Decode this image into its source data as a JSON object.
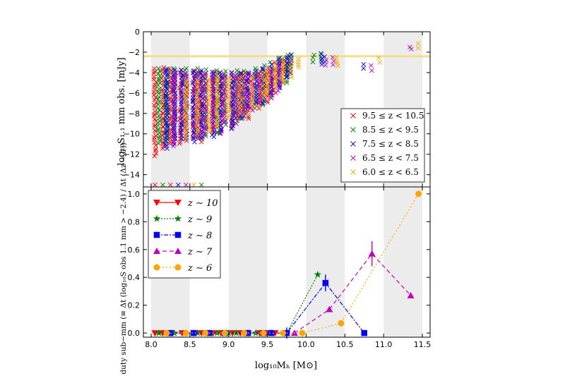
{
  "axes": {
    "xlabel": "log₁₀Mₕ [M⊙]",
    "top_ylabel": "log₁₀S₁.₁ mm obs. [mJy]",
    "bottom_ylabel": "f duty sub−mm (≡ Δt (log₁₀S obs 1.1 mm > −2.4) / Δt (Δz ~ 1))",
    "xticks": [
      "8.0",
      "8.5",
      "9.0",
      "9.5",
      "10.0",
      "10.5",
      "11.0",
      "11.5"
    ],
    "top_yticks": [
      "0",
      "−2",
      "−4",
      "−6",
      "−8",
      "−10",
      "−12",
      "−14"
    ],
    "bottom_yticks": [
      "0.0",
      "0.2",
      "0.4",
      "0.6",
      "0.8",
      "1.0"
    ]
  },
  "colors": {
    "z10": "#ff0000",
    "z9": "#008000",
    "z8": "#0000ff",
    "z7": "#bf00bf",
    "z6": "#ffa500",
    "threshold": "#f5e08a",
    "band": "#ececec"
  },
  "top_legend": [
    {
      "key": "z10",
      "label": "9.5 ≤ z < 10.5"
    },
    {
      "key": "z9",
      "label": "8.5 ≤ z < 9.5"
    },
    {
      "key": "z8",
      "label": "7.5 ≤ z < 8.5"
    },
    {
      "key": "z7",
      "label": "6.5 ≤ z < 7.5"
    },
    {
      "key": "z6",
      "label": "6.0 ≤ z < 6.5"
    }
  ],
  "bottom_legend": [
    {
      "key": "z10",
      "label": "z ∼ 10",
      "marker": "tri-down",
      "dash": ""
    },
    {
      "key": "z9",
      "label": "z ∼ 9",
      "marker": "star",
      "dash": "2,2"
    },
    {
      "key": "z8",
      "label": "z ∼ 8",
      "marker": "square",
      "dash": "6,2,2,2"
    },
    {
      "key": "z7",
      "label": "z ∼ 7",
      "marker": "tri-up",
      "dash": "6,4"
    },
    {
      "key": "z6",
      "label": "z ∼ 6",
      "marker": "circle",
      "dash": "2,3"
    }
  ],
  "chart_data": [
    {
      "type": "scatter",
      "panel": "top",
      "xlim": [
        7.9,
        11.6
      ],
      "ylim": [
        -15.2,
        0
      ],
      "shaded_bands_x": [
        [
          8.0,
          8.5
        ],
        [
          9.0,
          9.5
        ],
        [
          10.0,
          10.5
        ],
        [
          11.0,
          11.5
        ]
      ],
      "threshold_y": -2.4,
      "upper_limit_row_y": -15,
      "marker": "x",
      "series": [
        {
          "key": "z10",
          "name": "9.5 ≤ z < 10.5",
          "columns": [
            [
              8.05,
              -12.2,
              -3.6
            ],
            [
              8.15,
              -11.5,
              -3.5
            ],
            [
              8.25,
              -11.0,
              -3.6
            ],
            [
              8.38,
              -11.0,
              -3.7
            ],
            [
              8.55,
              -10.5,
              -3.8
            ],
            [
              8.65,
              -10.8,
              -3.9
            ],
            [
              8.8,
              -10.0,
              -3.9
            ],
            [
              8.9,
              -10.0,
              -4.0
            ],
            [
              9.05,
              -9.5,
              -4.0
            ],
            [
              9.15,
              -8.5,
              -4.0
            ],
            [
              9.25,
              -8.5,
              -4.0
            ],
            [
              9.4,
              -7.5,
              -3.9
            ],
            [
              9.5,
              -7.0,
              -3.5
            ],
            [
              9.6,
              -6.0,
              -3.0
            ],
            [
              9.7,
              -5.0,
              -2.6
            ],
            [
              9.75,
              -4.5,
              -2.5
            ]
          ],
          "limits": [
            8.05,
            8.25
          ]
        },
        {
          "key": "z9",
          "name": "8.5 ≤ z < 9.5",
          "columns": [
            [
              8.1,
              -11.0,
              -3.5
            ],
            [
              8.2,
              -10.8,
              -3.6
            ],
            [
              8.3,
              -10.5,
              -3.6
            ],
            [
              8.45,
              -10.5,
              -3.6
            ],
            [
              8.6,
              -10.5,
              -3.6
            ],
            [
              8.7,
              -10.2,
              -3.7
            ],
            [
              8.85,
              -10.0,
              -3.8
            ],
            [
              8.95,
              -9.2,
              -3.8
            ],
            [
              9.1,
              -9.0,
              -3.8
            ],
            [
              9.2,
              -8.5,
              -3.8
            ],
            [
              9.35,
              -7.5,
              -3.6
            ],
            [
              9.45,
              -7.2,
              -3.3
            ],
            [
              9.55,
              -6.5,
              -2.9
            ],
            [
              9.65,
              -5.5,
              -2.5
            ],
            [
              9.75,
              -5.0,
              -2.3
            ],
            [
              9.8,
              -4.0,
              -2.2
            ],
            [
              10.1,
              -3.0,
              -2.2
            ],
            [
              10.2,
              -2.8,
              -2.1
            ]
          ],
          "limits": [
            8.15,
            8.65
          ]
        },
        {
          "key": "z8",
          "name": "7.5 ≤ z < 8.5",
          "columns": [
            [
              8.2,
              -11.5,
              -3.6
            ],
            [
              8.3,
              -11.0,
              -3.7
            ],
            [
              8.4,
              -10.5,
              -3.7
            ],
            [
              8.55,
              -10.8,
              -3.8
            ],
            [
              8.65,
              -10.5,
              -3.8
            ],
            [
              8.8,
              -10.3,
              -3.9
            ],
            [
              8.9,
              -10.0,
              -4.0
            ],
            [
              9.05,
              -9.5,
              -4.0
            ],
            [
              9.15,
              -8.5,
              -4.0
            ],
            [
              9.25,
              -7.5,
              -4.0
            ],
            [
              9.35,
              -7.0,
              -3.9
            ],
            [
              9.45,
              -7.0,
              -3.6
            ],
            [
              9.55,
              -6.0,
              -3.2
            ],
            [
              9.65,
              -5.5,
              -2.6
            ],
            [
              9.75,
              -4.5,
              -2.5
            ],
            [
              9.8,
              -4.0,
              -2.3
            ],
            [
              10.2,
              -3.2,
              -2.2
            ],
            [
              10.25,
              -3.0,
              -2.4
            ],
            [
              10.75,
              -3.6,
              -3.2
            ]
          ],
          "limits": [
            8.35
          ]
        },
        {
          "key": "z7",
          "name": "6.5 ≤ z < 7.5",
          "columns": [
            [
              8.3,
              -11.2,
              -4.0
            ],
            [
              8.45,
              -10.7,
              -4.0
            ],
            [
              8.6,
              -10.5,
              -4.0
            ],
            [
              8.7,
              -10.0,
              -4.1
            ],
            [
              8.8,
              -9.5,
              -4.2
            ],
            [
              8.95,
              -9.0,
              -4.2
            ],
            [
              9.1,
              -8.5,
              -4.3
            ],
            [
              9.2,
              -8.2,
              -4.3
            ],
            [
              9.3,
              -7.7,
              -4.3
            ],
            [
              9.4,
              -7.0,
              -4.1
            ],
            [
              9.55,
              -6.5,
              -3.8
            ],
            [
              9.65,
              -5.8,
              -3.2
            ],
            [
              10.25,
              -3.3,
              -2.7
            ],
            [
              10.35,
              -3.3,
              -2.5
            ],
            [
              10.85,
              -3.9,
              -3.3
            ],
            [
              11.35,
              -1.7,
              -1.5
            ]
          ],
          "singles": [
            [
              9.1,
              -9.0
            ]
          ],
          "limits": [
            8.45
          ]
        },
        {
          "key": "z6",
          "name": "6.0 ≤ z < 6.5",
          "columns": [
            [
              8.45,
              -10.5,
              -4.8
            ],
            [
              8.6,
              -10.0,
              -4.7
            ],
            [
              8.75,
              -9.8,
              -4.6
            ],
            [
              8.85,
              -9.2,
              -4.5
            ],
            [
              9.0,
              -8.5,
              -4.5
            ],
            [
              9.15,
              -8.0,
              -4.4
            ],
            [
              9.3,
              -7.5,
              -4.3
            ],
            [
              9.45,
              -6.5,
              -4.0
            ],
            [
              9.5,
              -6.0,
              -3.8
            ],
            [
              9.6,
              -5.5,
              -3.2
            ],
            [
              9.7,
              -5.0,
              -3.0
            ],
            [
              9.8,
              -4.5,
              -2.7
            ],
            [
              9.9,
              -3.5,
              -2.6
            ],
            [
              10.4,
              -3.4,
              -2.5
            ],
            [
              10.95,
              -3.0,
              -2.5
            ],
            [
              11.45,
              -1.6,
              -1.1
            ]
          ],
          "singles": [
            [
              9.6,
              -4.3
            ]
          ],
          "limits": [
            8.55
          ]
        }
      ]
    },
    {
      "type": "line",
      "panel": "bottom",
      "xlim": [
        7.9,
        11.6
      ],
      "ylim": [
        -0.03,
        1.05
      ],
      "series": [
        {
          "key": "z10",
          "name": "z ∼ 10",
          "x": [
            8.05,
            8.15,
            8.25,
            8.4,
            8.55,
            8.65,
            8.8,
            8.9,
            9.05,
            9.15,
            9.25,
            9.4,
            9.5,
            9.6,
            9.75
          ],
          "y": [
            0,
            0,
            0,
            0,
            0,
            0,
            0,
            0,
            0,
            0,
            0,
            0,
            0,
            0,
            0
          ]
        },
        {
          "key": "z9",
          "name": "z ∼ 9",
          "x": [
            8.1,
            8.3,
            8.45,
            8.6,
            8.75,
            8.85,
            9.0,
            9.1,
            9.25,
            9.35,
            9.55,
            9.75,
            10.15
          ],
          "y": [
            0,
            0,
            0,
            0,
            0,
            0,
            0,
            0,
            0,
            0,
            0,
            0,
            0.42
          ]
        },
        {
          "key": "z8",
          "name": "z ∼ 8",
          "x": [
            8.25,
            8.55,
            8.75,
            8.95,
            9.25,
            9.45,
            9.55,
            9.75,
            10.25,
            10.75
          ],
          "y": [
            0,
            0,
            0,
            0,
            0,
            0,
            0,
            0,
            0.36,
            0
          ],
          "yerr": [
            [
              9.75,
              0.04
            ],
            [
              10.25,
              0.06
            ]
          ]
        },
        {
          "key": "z7",
          "name": "z ∼ 7",
          "x": [
            9.85,
            10.3,
            10.85,
            11.35
          ],
          "y": [
            0,
            0.17,
            0.57,
            0.27
          ],
          "yerr": [
            [
              10.85,
              0.09
            ]
          ]
        },
        {
          "key": "z6",
          "name": "z ∼ 6",
          "x": [
            8.2,
            8.45,
            8.7,
            8.95,
            9.2,
            9.45,
            9.7,
            9.95,
            10.45,
            11.45
          ],
          "y": [
            0,
            0,
            0,
            0,
            0,
            0,
            0,
            0,
            0.07,
            1.0
          ]
        }
      ]
    }
  ]
}
